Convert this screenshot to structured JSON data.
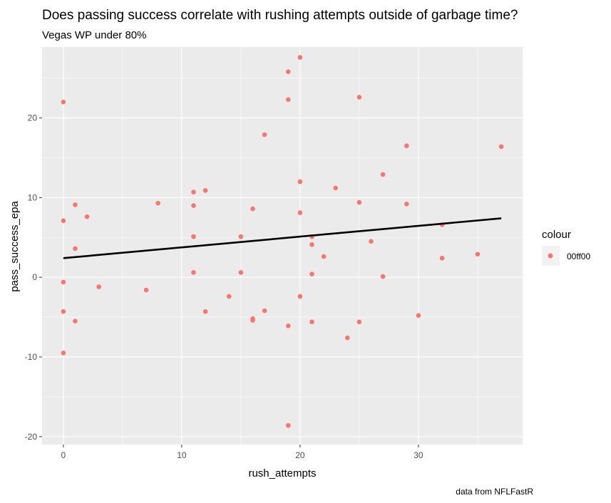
{
  "chart_data": {
    "type": "scatter",
    "title": "Does passing success correlate with rushing attempts outside of garbage time?",
    "subtitle": "Vegas WP under 80%",
    "xlabel": "rush_attempts",
    "ylabel": "pass_success_epa",
    "caption": "data from NFLFastR",
    "xlim": [
      -1.8,
      38.8
    ],
    "ylim": [
      -21,
      28.9
    ],
    "x_ticks": [
      0,
      10,
      20,
      30
    ],
    "x_tick_labels": [
      "0",
      "10",
      "20",
      "30"
    ],
    "y_ticks": [
      -20,
      -10,
      0,
      10,
      20
    ],
    "y_tick_labels": [
      "-20",
      "-10",
      "0",
      "10",
      "20"
    ],
    "grid": true,
    "legend": {
      "title": "colour",
      "position": "right",
      "entries": [
        {
          "label": "00ff00",
          "color": "#F8766D"
        }
      ]
    },
    "point_color": "#F8766D",
    "trend_color": "#000000",
    "panel_color": "#EBEBEB",
    "trend_line": {
      "x": [
        0,
        37
      ],
      "y": [
        2.4,
        7.4
      ]
    },
    "points": [
      {
        "x": 0,
        "y": 22.0
      },
      {
        "x": 0,
        "y": 7.1
      },
      {
        "x": 0,
        "y": -0.6
      },
      {
        "x": 0,
        "y": -4.3
      },
      {
        "x": 0,
        "y": -9.5
      },
      {
        "x": 1,
        "y": 9.1
      },
      {
        "x": 1,
        "y": 3.6
      },
      {
        "x": 1,
        "y": -5.5
      },
      {
        "x": 2,
        "y": 7.6
      },
      {
        "x": 3,
        "y": -1.2
      },
      {
        "x": 7,
        "y": -1.6
      },
      {
        "x": 8,
        "y": 9.3
      },
      {
        "x": 11,
        "y": 10.7
      },
      {
        "x": 11,
        "y": 9.0
      },
      {
        "x": 11,
        "y": 5.1
      },
      {
        "x": 11,
        "y": 0.6
      },
      {
        "x": 12,
        "y": 10.9
      },
      {
        "x": 12,
        "y": -4.3
      },
      {
        "x": 14,
        "y": -2.4
      },
      {
        "x": 15,
        "y": 5.1
      },
      {
        "x": 15,
        "y": 0.6
      },
      {
        "x": 16,
        "y": 8.6
      },
      {
        "x": 16,
        "y": -5.2
      },
      {
        "x": 16,
        "y": -5.4
      },
      {
        "x": 17,
        "y": 17.9
      },
      {
        "x": 17,
        "y": -4.2
      },
      {
        "x": 19,
        "y": 25.8
      },
      {
        "x": 19,
        "y": 22.3
      },
      {
        "x": 19,
        "y": -6.1
      },
      {
        "x": 19,
        "y": -18.6
      },
      {
        "x": 20,
        "y": 27.6
      },
      {
        "x": 20,
        "y": 12.0
      },
      {
        "x": 20,
        "y": 8.1
      },
      {
        "x": 20,
        "y": -2.4
      },
      {
        "x": 21,
        "y": 5.1
      },
      {
        "x": 21,
        "y": 4.1
      },
      {
        "x": 21,
        "y": 0.4
      },
      {
        "x": 21,
        "y": -5.6
      },
      {
        "x": 22,
        "y": 2.6
      },
      {
        "x": 23,
        "y": 11.2
      },
      {
        "x": 24,
        "y": -7.6
      },
      {
        "x": 25,
        "y": 22.6
      },
      {
        "x": 25,
        "y": 9.4
      },
      {
        "x": 25,
        "y": -5.6
      },
      {
        "x": 26,
        "y": 4.5
      },
      {
        "x": 27,
        "y": 12.9
      },
      {
        "x": 27,
        "y": 0.1
      },
      {
        "x": 29,
        "y": 16.5
      },
      {
        "x": 29,
        "y": 9.2
      },
      {
        "x": 30,
        "y": -4.8
      },
      {
        "x": 32,
        "y": 6.6
      },
      {
        "x": 32,
        "y": 2.4
      },
      {
        "x": 35,
        "y": 2.9
      },
      {
        "x": 37,
        "y": 16.4
      }
    ]
  }
}
